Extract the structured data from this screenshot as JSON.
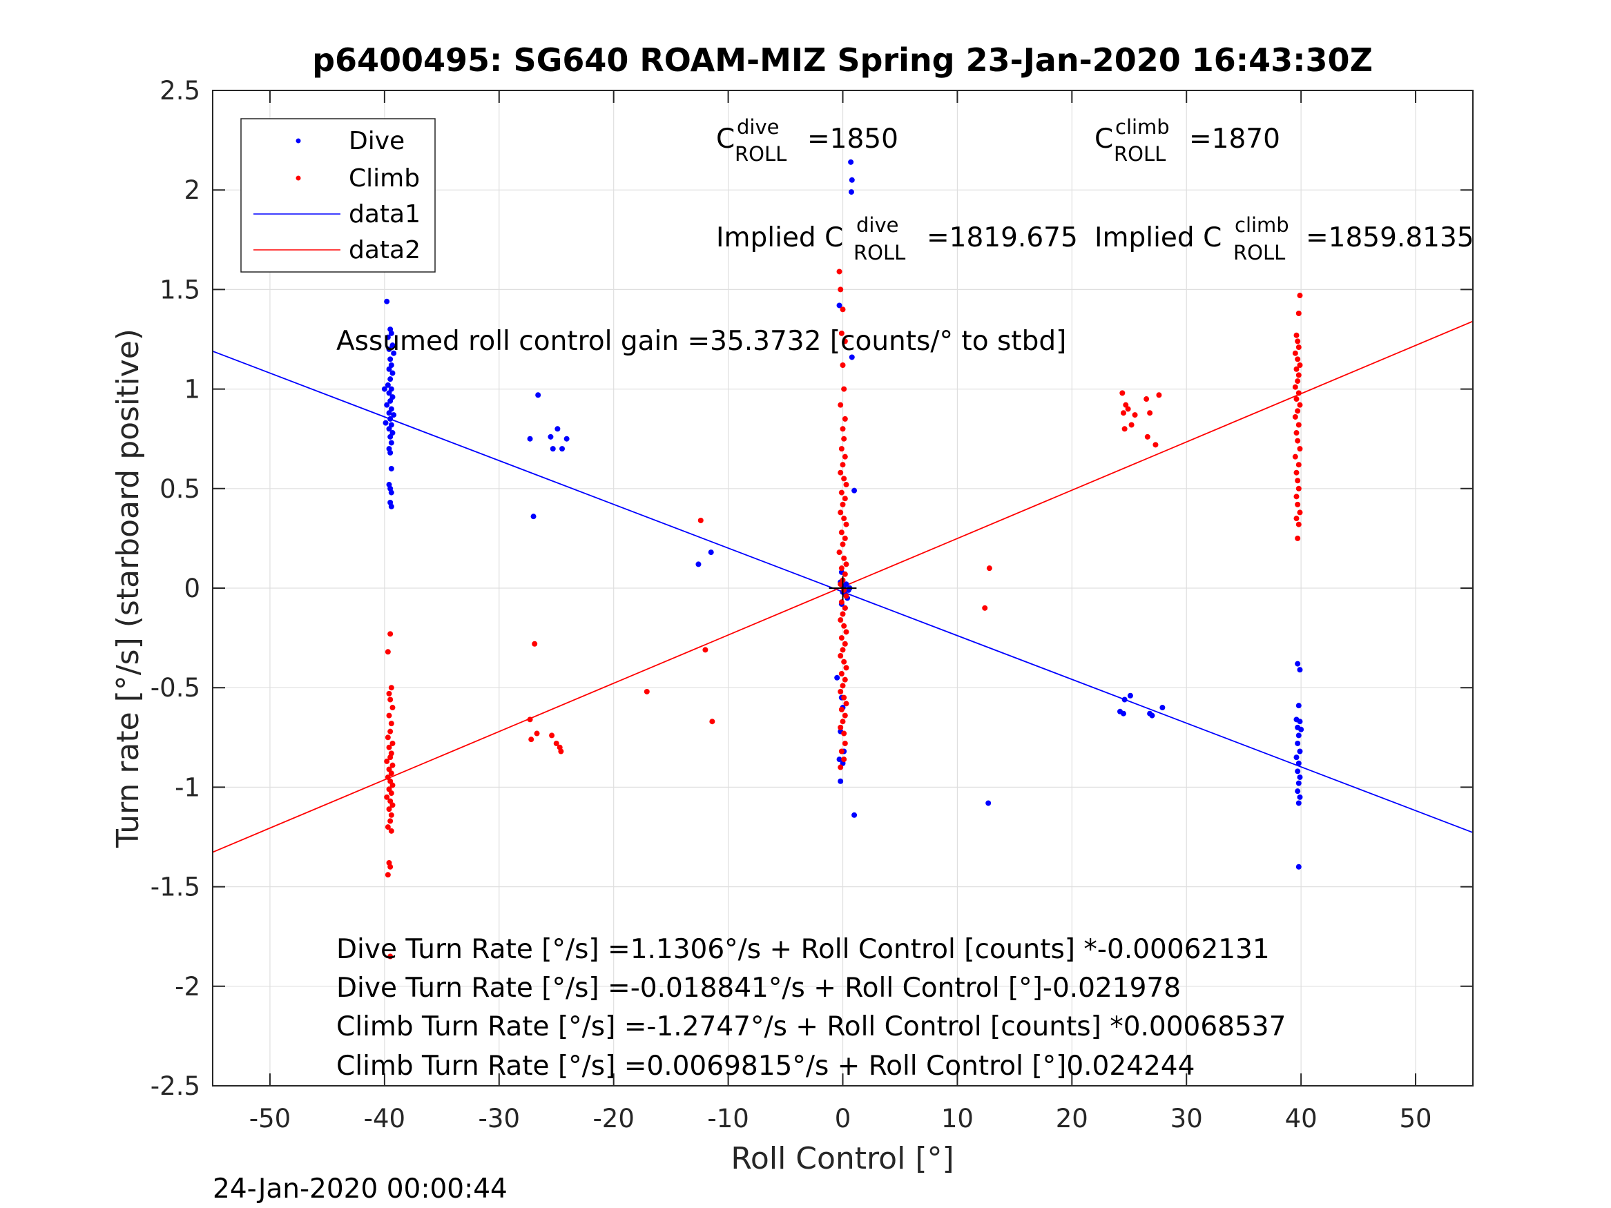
{
  "figure": {
    "timestamp": "24-Jan-2020 00:00:44"
  },
  "chart_data": {
    "type": "scatter",
    "title": "p6400495: SG640 ROAM-MIZ Spring 23-Jan-2020 16:43:30Z",
    "xlabel": "Roll Control [°]",
    "ylabel": "Turn rate [°/s] (starboard positive)",
    "xlim": [
      -55,
      55
    ],
    "ylim": [
      -2.5,
      2.5
    ],
    "xticks": [
      -50,
      -40,
      -30,
      -20,
      -10,
      0,
      10,
      20,
      30,
      40,
      50
    ],
    "yticks": [
      -2.5,
      -2,
      -1.5,
      -1,
      -0.5,
      0,
      0.5,
      1,
      1.5,
      2,
      2.5
    ],
    "grid": true,
    "legend": {
      "position": "top-left",
      "entries": [
        "Dive",
        "Climb",
        "data1",
        "data2"
      ]
    },
    "colors": {
      "dive": "#0000ff",
      "climb": "#ff0000",
      "axis": "#262626",
      "grid": "#dfdfdf"
    },
    "annotations": {
      "c_dive": {
        "prefix": "C",
        "sup": "dive",
        "sub": "ROLL",
        "value": "=1850"
      },
      "c_climb": {
        "prefix": "C",
        "sup": "climb",
        "sub": "ROLL",
        "value": "=1870"
      },
      "implied_dive": {
        "prefix": "Implied C",
        "sup": "dive",
        "sub": "ROLL",
        "value": "=1819.675"
      },
      "implied_climb": {
        "prefix": "Implied C",
        "sup": "climb",
        "sub": "ROLL",
        "value": "=1859.8135"
      },
      "gain": "Assumed roll control gain =35.3732 [counts/° to stbd]",
      "eq1": "Dive Turn Rate [°/s] =1.1306°/s + Roll Control [counts] *-0.00062131",
      "eq2": "Dive Turn Rate [°/s] =-0.018841°/s + Roll Control [°]-0.021978",
      "eq3": "Climb Turn Rate [°/s] =-1.2747°/s + Roll Control [counts] *0.00068537",
      "eq4": "Climb Turn Rate [°/s] =0.0069815°/s + Roll Control [°]0.024244"
    },
    "lines": [
      {
        "name": "data1",
        "intercept": -0.018841,
        "slope": -0.021978,
        "color": "#0000ff"
      },
      {
        "name": "data2",
        "intercept": 0.0069815,
        "slope": 0.024244,
        "color": "#ff0000"
      }
    ],
    "series": [
      {
        "name": "Dive",
        "color": "#0000ff",
        "points": [
          [
            -39.8,
            1.44
          ],
          [
            -39.5,
            1.3
          ],
          [
            -39.4,
            1.28
          ],
          [
            -39.7,
            1.26
          ],
          [
            -39.3,
            1.22
          ],
          [
            -39.6,
            1.2
          ],
          [
            -39.2,
            1.18
          ],
          [
            -39.5,
            1.15
          ],
          [
            -39.4,
            1.12
          ],
          [
            -39.6,
            1.1
          ],
          [
            -39.3,
            1.08
          ],
          [
            -39.5,
            1.05
          ],
          [
            -39.7,
            1.02
          ],
          [
            -39.4,
            1.0
          ],
          [
            -40.0,
            1.0
          ],
          [
            -39.6,
            0.98
          ],
          [
            -39.3,
            0.96
          ],
          [
            -39.5,
            0.94
          ],
          [
            -39.8,
            0.92
          ],
          [
            -39.4,
            0.9
          ],
          [
            -39.6,
            0.88
          ],
          [
            -39.2,
            0.87
          ],
          [
            -39.5,
            0.85
          ],
          [
            -39.9,
            0.83
          ],
          [
            -39.4,
            0.82
          ],
          [
            -39.6,
            0.8
          ],
          [
            -39.3,
            0.78
          ],
          [
            -39.5,
            0.76
          ],
          [
            -39.4,
            0.73
          ],
          [
            -39.6,
            0.7
          ],
          [
            -39.5,
            0.68
          ],
          [
            -39.4,
            0.6
          ],
          [
            -39.6,
            0.52
          ],
          [
            -39.5,
            0.5
          ],
          [
            -39.4,
            0.48
          ],
          [
            -39.5,
            0.43
          ],
          [
            -39.4,
            0.41
          ],
          [
            -27.3,
            0.75
          ],
          [
            -26.6,
            0.97
          ],
          [
            -25.5,
            0.76
          ],
          [
            -25.3,
            0.7
          ],
          [
            -24.9,
            0.8
          ],
          [
            -24.5,
            0.7
          ],
          [
            -24.1,
            0.75
          ],
          [
            -27.0,
            0.36
          ],
          [
            -12.6,
            0.12
          ],
          [
            -11.5,
            0.18
          ],
          [
            0.7,
            2.14
          ],
          [
            0.8,
            2.05
          ],
          [
            0.75,
            1.99
          ],
          [
            -0.3,
            1.42
          ],
          [
            0.8,
            1.16
          ],
          [
            1.0,
            0.49
          ],
          [
            0.3,
            0.02
          ],
          [
            0.6,
            0.0
          ],
          [
            0.2,
            -0.03
          ],
          [
            0.4,
            -0.05
          ],
          [
            -0.1,
            -0.08
          ],
          [
            0.0,
            -0.02
          ],
          [
            0.1,
            0.01
          ],
          [
            0.5,
            -0.01
          ],
          [
            -0.2,
            0.03
          ],
          [
            -0.5,
            -0.45
          ],
          [
            -0.1,
            -0.55
          ],
          [
            0.0,
            -0.6
          ],
          [
            -0.2,
            -0.72
          ],
          [
            0.1,
            -0.82
          ],
          [
            -0.3,
            -0.86
          ],
          [
            0.0,
            -0.88
          ],
          [
            -0.2,
            -0.97
          ],
          [
            1.0,
            -1.14
          ],
          [
            0.2,
            -0.1
          ],
          [
            -0.1,
            0.08
          ],
          [
            12.7,
            -1.08
          ],
          [
            24.2,
            -0.62
          ],
          [
            24.5,
            -0.63
          ],
          [
            24.6,
            -0.56
          ],
          [
            25.1,
            -0.54
          ],
          [
            26.8,
            -0.63
          ],
          [
            27.0,
            -0.64
          ],
          [
            27.9,
            -0.6
          ],
          [
            39.7,
            -0.38
          ],
          [
            39.9,
            -0.41
          ],
          [
            39.8,
            -0.59
          ],
          [
            39.6,
            -0.66
          ],
          [
            39.9,
            -0.67
          ],
          [
            39.7,
            -0.7
          ],
          [
            40.0,
            -0.71
          ],
          [
            39.8,
            -0.74
          ],
          [
            39.7,
            -0.78
          ],
          [
            39.9,
            -0.82
          ],
          [
            39.6,
            -0.85
          ],
          [
            39.8,
            -0.88
          ],
          [
            39.7,
            -0.92
          ],
          [
            39.9,
            -0.95
          ],
          [
            39.8,
            -0.98
          ],
          [
            39.7,
            -1.02
          ],
          [
            39.9,
            -1.05
          ],
          [
            39.8,
            -1.08
          ],
          [
            39.8,
            -1.4
          ]
        ]
      },
      {
        "name": "Climb",
        "color": "#ff0000",
        "points": [
          [
            -39.5,
            -0.23
          ],
          [
            -39.7,
            -0.32
          ],
          [
            -39.4,
            -0.5
          ],
          [
            -39.6,
            -0.53
          ],
          [
            -39.5,
            -0.56
          ],
          [
            -39.3,
            -0.6
          ],
          [
            -39.6,
            -0.64
          ],
          [
            -39.4,
            -0.68
          ],
          [
            -39.5,
            -0.72
          ],
          [
            -39.7,
            -0.75
          ],
          [
            -39.3,
            -0.78
          ],
          [
            -39.6,
            -0.8
          ],
          [
            -39.4,
            -0.83
          ],
          [
            -39.5,
            -0.85
          ],
          [
            -39.8,
            -0.87
          ],
          [
            -39.3,
            -0.89
          ],
          [
            -39.6,
            -0.91
          ],
          [
            -39.4,
            -0.93
          ],
          [
            -39.7,
            -0.95
          ],
          [
            -39.5,
            -0.97
          ],
          [
            -39.3,
            -0.99
          ],
          [
            -39.6,
            -1.01
          ],
          [
            -39.4,
            -1.03
          ],
          [
            -39.8,
            -1.05
          ],
          [
            -39.5,
            -1.07
          ],
          [
            -39.3,
            -1.09
          ],
          [
            -39.6,
            -1.11
          ],
          [
            -39.4,
            -1.14
          ],
          [
            -39.5,
            -1.17
          ],
          [
            -39.7,
            -1.2
          ],
          [
            -39.4,
            -1.22
          ],
          [
            -39.6,
            -1.38
          ],
          [
            -39.5,
            -1.4
          ],
          [
            -39.7,
            -1.44
          ],
          [
            -39.5,
            -1.85
          ],
          [
            -27.3,
            -0.66
          ],
          [
            -27.2,
            -0.76
          ],
          [
            -26.7,
            -0.73
          ],
          [
            -25.4,
            -0.74
          ],
          [
            -25.0,
            -0.78
          ],
          [
            -24.7,
            -0.8
          ],
          [
            -24.6,
            -0.82
          ],
          [
            -26.9,
            -0.28
          ],
          [
            -17.1,
            -0.52
          ],
          [
            -12.4,
            0.34
          ],
          [
            -12.0,
            -0.31
          ],
          [
            -11.4,
            -0.67
          ],
          [
            -0.3,
            1.59
          ],
          [
            -0.2,
            1.5
          ],
          [
            0.0,
            1.4
          ],
          [
            -0.1,
            1.28
          ],
          [
            0.2,
            1.24
          ],
          [
            0.0,
            1.12
          ],
          [
            0.1,
            1.0
          ],
          [
            -0.2,
            0.92
          ],
          [
            0.2,
            0.85
          ],
          [
            0.0,
            0.8
          ],
          [
            0.1,
            0.75
          ],
          [
            -0.1,
            0.7
          ],
          [
            0.2,
            0.66
          ],
          [
            0.0,
            0.62
          ],
          [
            -0.2,
            0.58
          ],
          [
            0.1,
            0.55
          ],
          [
            0.3,
            0.52
          ],
          [
            -0.1,
            0.48
          ],
          [
            0.2,
            0.45
          ],
          [
            0.0,
            0.42
          ],
          [
            -0.2,
            0.38
          ],
          [
            0.1,
            0.35
          ],
          [
            0.3,
            0.32
          ],
          [
            -0.1,
            0.28
          ],
          [
            0.2,
            0.25
          ],
          [
            0.0,
            0.22
          ],
          [
            -0.3,
            0.18
          ],
          [
            0.1,
            0.15
          ],
          [
            0.3,
            0.12
          ],
          [
            -0.1,
            0.1
          ],
          [
            0.2,
            0.07
          ],
          [
            0.0,
            0.04
          ],
          [
            -0.2,
            0.02
          ],
          [
            0.1,
            -0.01
          ],
          [
            0.3,
            -0.04
          ],
          [
            -0.1,
            -0.07
          ],
          [
            0.2,
            -0.1
          ],
          [
            0.0,
            -0.13
          ],
          [
            -0.2,
            -0.16
          ],
          [
            0.1,
            -0.19
          ],
          [
            0.3,
            -0.22
          ],
          [
            -0.1,
            -0.25
          ],
          [
            0.2,
            -0.28
          ],
          [
            0.0,
            -0.31
          ],
          [
            -0.2,
            -0.34
          ],
          [
            0.1,
            -0.37
          ],
          [
            0.3,
            -0.4
          ],
          [
            -0.1,
            -0.43
          ],
          [
            0.2,
            -0.46
          ],
          [
            0.0,
            -0.49
          ],
          [
            -0.2,
            -0.52
          ],
          [
            0.1,
            -0.55
          ],
          [
            0.3,
            -0.58
          ],
          [
            -0.1,
            -0.61
          ],
          [
            0.2,
            -0.64
          ],
          [
            0.0,
            -0.67
          ],
          [
            -0.2,
            -0.7
          ],
          [
            0.1,
            -0.73
          ],
          [
            0.2,
            -0.78
          ],
          [
            -0.1,
            -0.82
          ],
          [
            0.1,
            -0.86
          ],
          [
            -0.2,
            -0.9
          ],
          [
            12.4,
            -0.1
          ],
          [
            12.8,
            0.1
          ],
          [
            24.4,
            0.98
          ],
          [
            24.7,
            0.92
          ],
          [
            24.5,
            0.88
          ],
          [
            24.9,
            0.9
          ],
          [
            25.2,
            0.82
          ],
          [
            24.6,
            0.8
          ],
          [
            25.5,
            0.87
          ],
          [
            26.5,
            0.95
          ],
          [
            26.8,
            0.88
          ],
          [
            26.6,
            0.76
          ],
          [
            27.3,
            0.72
          ],
          [
            27.6,
            0.97
          ],
          [
            39.9,
            1.47
          ],
          [
            39.8,
            1.38
          ],
          [
            39.6,
            1.27
          ],
          [
            39.7,
            1.24
          ],
          [
            39.8,
            1.21
          ],
          [
            39.5,
            1.18
          ],
          [
            39.7,
            1.15
          ],
          [
            39.9,
            1.12
          ],
          [
            39.6,
            1.1
          ],
          [
            39.8,
            1.07
          ],
          [
            39.7,
            1.04
          ],
          [
            39.5,
            1.01
          ],
          [
            39.8,
            0.98
          ],
          [
            39.6,
            0.95
          ],
          [
            39.9,
            0.92
          ],
          [
            39.7,
            0.89
          ],
          [
            39.5,
            0.86
          ],
          [
            39.8,
            0.82
          ],
          [
            39.6,
            0.78
          ],
          [
            39.7,
            0.74
          ],
          [
            39.9,
            0.7
          ],
          [
            39.5,
            0.66
          ],
          [
            39.8,
            0.62
          ],
          [
            39.6,
            0.58
          ],
          [
            39.7,
            0.54
          ],
          [
            39.8,
            0.5
          ],
          [
            39.6,
            0.46
          ],
          [
            39.7,
            0.42
          ],
          [
            39.9,
            0.38
          ],
          [
            39.6,
            0.35
          ],
          [
            39.8,
            0.32
          ],
          [
            39.7,
            0.25
          ]
        ]
      }
    ]
  }
}
